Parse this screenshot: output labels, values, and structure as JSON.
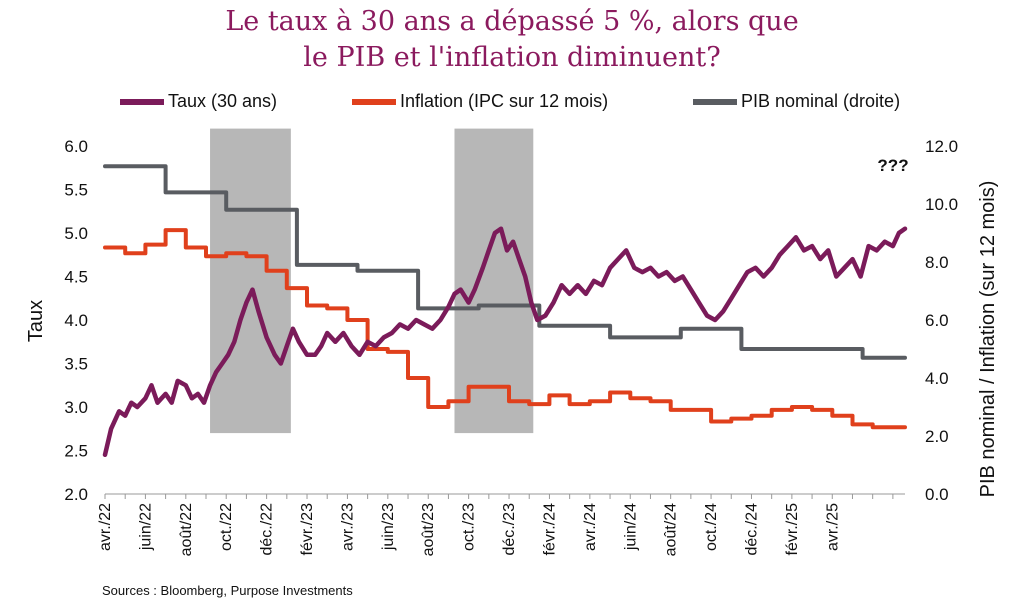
{
  "chart_data": {
    "type": "line",
    "title_line1": "Le taux à 30 ans a dépassé 5 %, alors que",
    "title_line2": "le PIB et l'inflation diminuent?",
    "ylabel_left": "Taux",
    "ylabel_right": "PIB nominal / Inflation (sur 12 mois)",
    "ylim_left": [
      2.0,
      6.0
    ],
    "ylim_right": [
      0.0,
      12.0
    ],
    "left_ticks": [
      "2.0",
      "2.5",
      "3.0",
      "3.5",
      "4.0",
      "4.5",
      "5.0",
      "5.5",
      "6.0"
    ],
    "right_ticks": [
      "0.0",
      "2.0",
      "4.0",
      "6.0",
      "8.0",
      "10.0",
      "12.0"
    ],
    "x_labels": [
      "avr./22",
      "juin/22",
      "août/22",
      "oct./22",
      "déc./22",
      "févr./23",
      "avr./23",
      "juin/23",
      "août/23",
      "oct./23",
      "déc./23",
      "févr./24",
      "avr./24",
      "juin/24",
      "août/24",
      "oct./24",
      "déc./24",
      "févr./25",
      "avr./25"
    ],
    "x_range_months": [
      0,
      39.6
    ],
    "annotation": "???",
    "shaded_periods_months": [
      [
        5.2,
        9.2
      ],
      [
        17.3,
        21.2
      ]
    ],
    "shaded_range_left": [
      2.7,
      6.2
    ],
    "series": [
      {
        "name": "Taux (30 ans)",
        "axis": "left",
        "color": "#7b1b5a",
        "points": [
          [
            0,
            2.45
          ],
          [
            0.3,
            2.75
          ],
          [
            0.7,
            2.95
          ],
          [
            1.0,
            2.9
          ],
          [
            1.3,
            3.05
          ],
          [
            1.6,
            3.0
          ],
          [
            2.0,
            3.1
          ],
          [
            2.3,
            3.25
          ],
          [
            2.6,
            3.05
          ],
          [
            3.0,
            3.15
          ],
          [
            3.3,
            3.05
          ],
          [
            3.6,
            3.3
          ],
          [
            4.0,
            3.25
          ],
          [
            4.3,
            3.1
          ],
          [
            4.6,
            3.15
          ],
          [
            4.9,
            3.05
          ],
          [
            5.2,
            3.25
          ],
          [
            5.5,
            3.4
          ],
          [
            5.8,
            3.5
          ],
          [
            6.1,
            3.6
          ],
          [
            6.4,
            3.75
          ],
          [
            6.7,
            4.0
          ],
          [
            7.0,
            4.2
          ],
          [
            7.3,
            4.35
          ],
          [
            7.6,
            4.1
          ],
          [
            8.0,
            3.8
          ],
          [
            8.4,
            3.6
          ],
          [
            8.7,
            3.5
          ],
          [
            9.0,
            3.7
          ],
          [
            9.3,
            3.9
          ],
          [
            9.6,
            3.75
          ],
          [
            10.0,
            3.6
          ],
          [
            10.4,
            3.6
          ],
          [
            10.7,
            3.7
          ],
          [
            11.0,
            3.85
          ],
          [
            11.4,
            3.75
          ],
          [
            11.8,
            3.85
          ],
          [
            12.2,
            3.7
          ],
          [
            12.6,
            3.6
          ],
          [
            13.0,
            3.75
          ],
          [
            13.4,
            3.7
          ],
          [
            13.8,
            3.8
          ],
          [
            14.2,
            3.85
          ],
          [
            14.6,
            3.95
          ],
          [
            15.0,
            3.9
          ],
          [
            15.4,
            4.0
          ],
          [
            15.8,
            3.95
          ],
          [
            16.2,
            3.9
          ],
          [
            16.6,
            4.0
          ],
          [
            17.0,
            4.15
          ],
          [
            17.3,
            4.3
          ],
          [
            17.6,
            4.35
          ],
          [
            18.0,
            4.2
          ],
          [
            18.3,
            4.35
          ],
          [
            18.7,
            4.6
          ],
          [
            19.0,
            4.8
          ],
          [
            19.3,
            5.0
          ],
          [
            19.6,
            5.05
          ],
          [
            19.9,
            4.8
          ],
          [
            20.2,
            4.9
          ],
          [
            20.5,
            4.7
          ],
          [
            20.8,
            4.5
          ],
          [
            21.1,
            4.2
          ],
          [
            21.4,
            4.0
          ],
          [
            21.8,
            4.05
          ],
          [
            22.2,
            4.2
          ],
          [
            22.6,
            4.4
          ],
          [
            23.0,
            4.3
          ],
          [
            23.4,
            4.4
          ],
          [
            23.8,
            4.3
          ],
          [
            24.2,
            4.45
          ],
          [
            24.6,
            4.4
          ],
          [
            25.0,
            4.6
          ],
          [
            25.4,
            4.7
          ],
          [
            25.8,
            4.8
          ],
          [
            26.2,
            4.6
          ],
          [
            26.6,
            4.55
          ],
          [
            27.0,
            4.6
          ],
          [
            27.4,
            4.5
          ],
          [
            27.8,
            4.55
          ],
          [
            28.2,
            4.45
          ],
          [
            28.6,
            4.5
          ],
          [
            29.0,
            4.35
          ],
          [
            29.4,
            4.2
          ],
          [
            29.8,
            4.05
          ],
          [
            30.2,
            4.0
          ],
          [
            30.6,
            4.1
          ],
          [
            31.0,
            4.25
          ],
          [
            31.4,
            4.4
          ],
          [
            31.8,
            4.55
          ],
          [
            32.2,
            4.6
          ],
          [
            32.6,
            4.5
          ],
          [
            33.0,
            4.6
          ],
          [
            33.4,
            4.75
          ],
          [
            33.8,
            4.85
          ],
          [
            34.2,
            4.95
          ],
          [
            34.6,
            4.8
          ],
          [
            35.0,
            4.85
          ],
          [
            35.4,
            4.7
          ],
          [
            35.8,
            4.8
          ],
          [
            36.2,
            4.5
          ],
          [
            36.6,
            4.6
          ],
          [
            37.0,
            4.7
          ],
          [
            37.4,
            4.5
          ],
          [
            37.8,
            4.85
          ],
          [
            38.2,
            4.8
          ],
          [
            38.6,
            4.9
          ],
          [
            39.0,
            4.85
          ],
          [
            39.3,
            5.0
          ],
          [
            39.6,
            5.05
          ]
        ]
      },
      {
        "name": "Inflation (IPC sur 12 mois)",
        "axis": "right",
        "color": "#e0401c",
        "points": [
          [
            0,
            8.5
          ],
          [
            1,
            8.5
          ],
          [
            1,
            8.3
          ],
          [
            2,
            8.3
          ],
          [
            2,
            8.6
          ],
          [
            3,
            8.6
          ],
          [
            3,
            9.1
          ],
          [
            4,
            9.1
          ],
          [
            4,
            8.5
          ],
          [
            5,
            8.5
          ],
          [
            5,
            8.2
          ],
          [
            6,
            8.2
          ],
          [
            6,
            8.3
          ],
          [
            7,
            8.3
          ],
          [
            7,
            8.2
          ],
          [
            8,
            8.2
          ],
          [
            8,
            7.7
          ],
          [
            9,
            7.7
          ],
          [
            9,
            7.1
          ],
          [
            10,
            7.1
          ],
          [
            10,
            6.5
          ],
          [
            11,
            6.5
          ],
          [
            11,
            6.4
          ],
          [
            12,
            6.4
          ],
          [
            12,
            6.0
          ],
          [
            13,
            6.0
          ],
          [
            13,
            5.0
          ],
          [
            14,
            5.0
          ],
          [
            14,
            4.9
          ],
          [
            15,
            4.9
          ],
          [
            15,
            4.0
          ],
          [
            16,
            4.0
          ],
          [
            16,
            3.0
          ],
          [
            17,
            3.0
          ],
          [
            17,
            3.2
          ],
          [
            18,
            3.2
          ],
          [
            18,
            3.7
          ],
          [
            20,
            3.7
          ],
          [
            20,
            3.2
          ],
          [
            21,
            3.2
          ],
          [
            21,
            3.1
          ],
          [
            22,
            3.1
          ],
          [
            22,
            3.4
          ],
          [
            23,
            3.4
          ],
          [
            23,
            3.1
          ],
          [
            24,
            3.1
          ],
          [
            24,
            3.2
          ],
          [
            25,
            3.2
          ],
          [
            25,
            3.5
          ],
          [
            26,
            3.5
          ],
          [
            26,
            3.3
          ],
          [
            27,
            3.3
          ],
          [
            27,
            3.2
          ],
          [
            28,
            3.2
          ],
          [
            28,
            2.9
          ],
          [
            30,
            2.9
          ],
          [
            30,
            2.5
          ],
          [
            31,
            2.5
          ],
          [
            31,
            2.6
          ],
          [
            32,
            2.6
          ],
          [
            32,
            2.7
          ],
          [
            33,
            2.7
          ],
          [
            33,
            2.9
          ],
          [
            34,
            2.9
          ],
          [
            34,
            3.0
          ],
          [
            35,
            3.0
          ],
          [
            35,
            2.9
          ],
          [
            36,
            2.9
          ],
          [
            36,
            2.7
          ],
          [
            37,
            2.7
          ],
          [
            37,
            2.4
          ],
          [
            38,
            2.4
          ],
          [
            38,
            2.3
          ],
          [
            39.6,
            2.3
          ]
        ]
      },
      {
        "name": "PIB nominal (droite)",
        "axis": "right",
        "color": "#595c61",
        "points": [
          [
            0,
            11.3
          ],
          [
            3,
            11.3
          ],
          [
            3,
            10.4
          ],
          [
            6,
            10.4
          ],
          [
            6,
            9.8
          ],
          [
            9.5,
            9.8
          ],
          [
            9.5,
            7.9
          ],
          [
            12.5,
            7.9
          ],
          [
            12.5,
            7.7
          ],
          [
            15.5,
            7.7
          ],
          [
            15.5,
            6.4
          ],
          [
            18.5,
            6.4
          ],
          [
            18.5,
            6.5
          ],
          [
            21.5,
            6.5
          ],
          [
            21.5,
            5.8
          ],
          [
            25,
            5.8
          ],
          [
            25,
            5.4
          ],
          [
            28.5,
            5.4
          ],
          [
            28.5,
            5.7
          ],
          [
            31.5,
            5.7
          ],
          [
            31.5,
            5.0
          ],
          [
            37.5,
            5.0
          ],
          [
            37.5,
            4.7
          ],
          [
            39.6,
            4.7
          ]
        ]
      }
    ]
  },
  "source_text": "Sources : Bloomberg, Purpose Investments"
}
